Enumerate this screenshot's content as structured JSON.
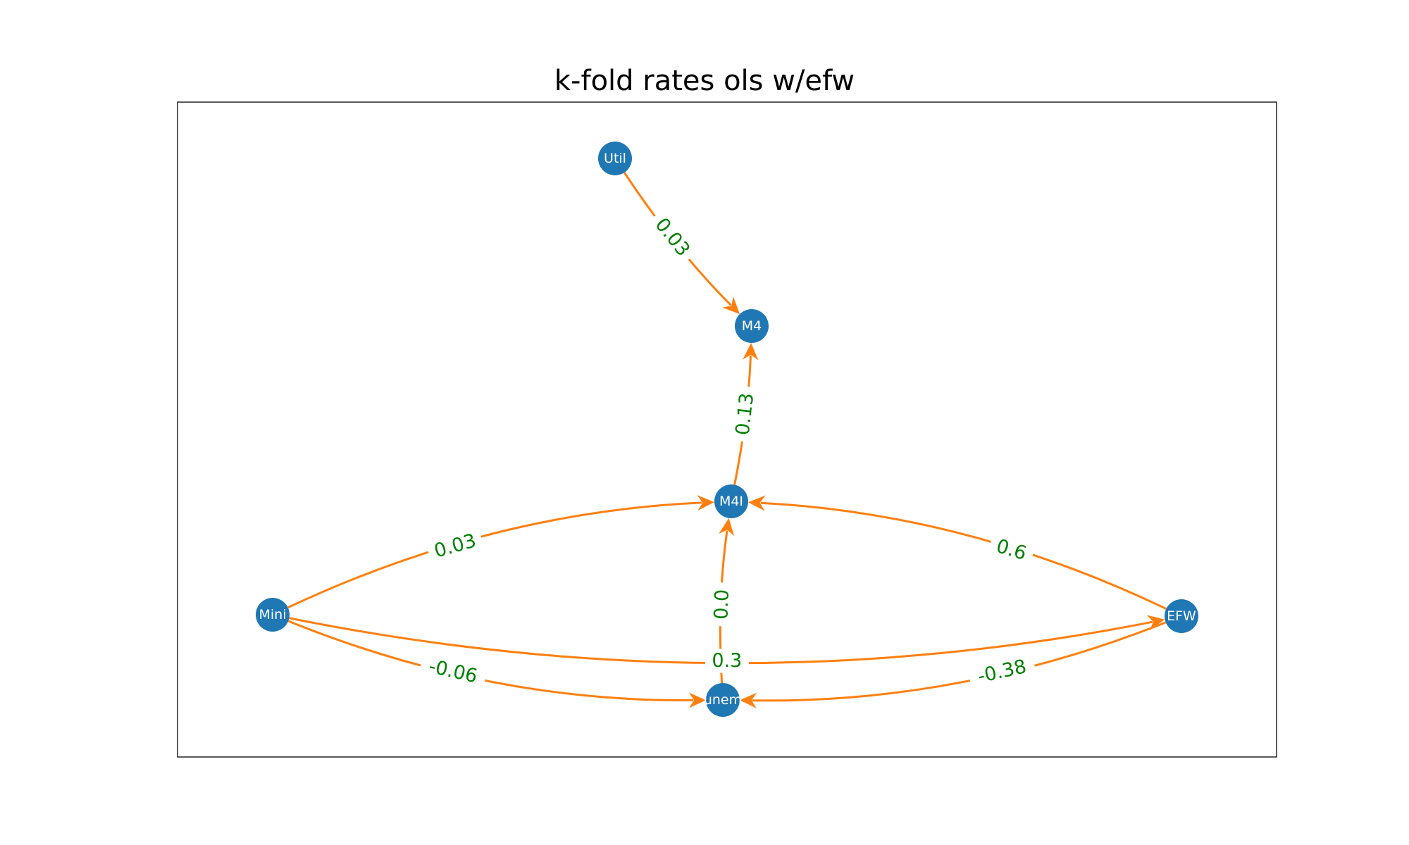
{
  "title": "k-fold rates ols w/efw",
  "colors": {
    "node": "#1f77b4",
    "edge": "#ff7f0e",
    "edge_label": "#008000",
    "node_label": "#ffffff",
    "frame": "#000000"
  },
  "nodes": [
    {
      "id": "Util",
      "label": "Util"
    },
    {
      "id": "M4",
      "label": "M4"
    },
    {
      "id": "M4I",
      "label": "M4I"
    },
    {
      "id": "Mini",
      "label": "Mini"
    },
    {
      "id": "EFW",
      "label": "EFW"
    },
    {
      "id": "unem",
      "label": "unem"
    }
  ],
  "edges": [
    {
      "from": "Util",
      "to": "M4",
      "label": "0.03"
    },
    {
      "from": "M4I",
      "to": "M4",
      "label": "0.13"
    },
    {
      "from": "Mini",
      "to": "M4I",
      "label": "0.03"
    },
    {
      "from": "EFW",
      "to": "M4I",
      "label": "0.6"
    },
    {
      "from": "unem",
      "to": "M4I",
      "label": "0.0"
    },
    {
      "from": "Mini",
      "to": "EFW",
      "label": "0.3"
    },
    {
      "from": "Mini",
      "to": "unem",
      "label": "-0.06"
    },
    {
      "from": "EFW",
      "to": "unem",
      "label": "-0.38"
    }
  ]
}
